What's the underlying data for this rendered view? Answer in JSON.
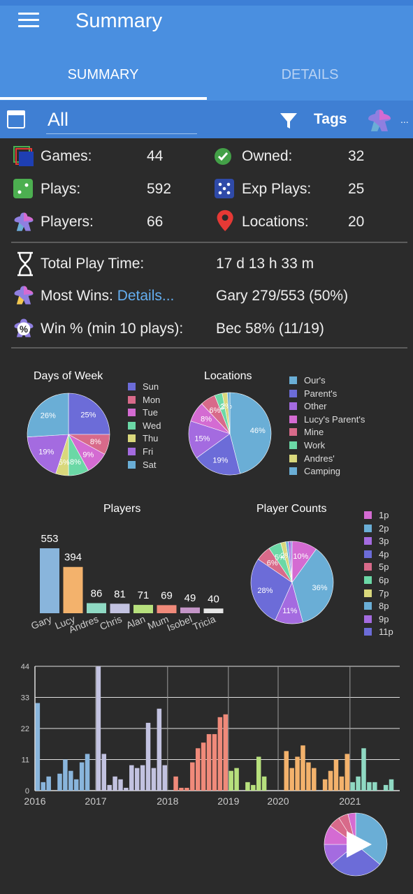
{
  "header": {
    "title": "Summary"
  },
  "tabs": [
    {
      "label": "SUMMARY"
    },
    {
      "label": "DETAILS"
    }
  ],
  "filter": {
    "date_value": "All",
    "tags_label": "Tags",
    "more": "..."
  },
  "stats": {
    "games_label": "Games:",
    "games_value": "44",
    "owned_label": "Owned:",
    "owned_value": "32",
    "plays_label": "Plays:",
    "plays_value": "592",
    "exp_plays_label": "Exp Plays:",
    "exp_plays_value": "25",
    "players_label": "Players:",
    "players_value": "66",
    "locations_label": "Locations:",
    "locations_value": "20",
    "play_time_label": "Total Play Time:",
    "play_time_value": "17 d 13 h 33 m",
    "most_wins_label": "Most Wins:",
    "most_wins_link": "Details...",
    "most_wins_value": "Gary 279/553 (50%)",
    "win_pct_label": "Win % (min 10 plays):",
    "win_pct_value": "Bec 58% (11/19)"
  },
  "colors": {
    "appbar": "#4a8fe0",
    "filterbar": "#3f7fd3",
    "link": "#64aef0",
    "background": "#2b2b2b"
  },
  "icons": [
    "menu-icon",
    "calendar-icon",
    "filter-icon",
    "meeple-icon",
    "games-icon",
    "check-icon",
    "dice-icon",
    "dice-blue-icon",
    "location-pin-icon",
    "hourglass-icon",
    "percent-icon",
    "play-icon"
  ],
  "chart_data": [
    {
      "type": "pie",
      "title": "Days of Week",
      "labels": [
        "Sun",
        "Mon",
        "Tue",
        "Wed",
        "Thu",
        "Fri",
        "Sat"
      ],
      "values": [
        25,
        8,
        9,
        8,
        5,
        19,
        26
      ],
      "slice_labels": [
        "25%",
        "8%",
        "9%",
        "8%",
        "5%",
        "19%",
        "26%"
      ],
      "colors": [
        "#6c6cd8",
        "#d86a8a",
        "#d46bd2",
        "#6bd8a6",
        "#d9d87c",
        "#a46be0",
        "#6aaed6"
      ]
    },
    {
      "type": "pie",
      "title": "Locations",
      "labels": [
        "Our's",
        "Parent's",
        "Other",
        "Lucy's Parent's",
        "Mine",
        "Work",
        "Andres'",
        "Camping"
      ],
      "values": [
        46,
        19,
        15,
        8,
        6,
        3,
        2,
        1
      ],
      "slice_labels": [
        "46%",
        "19%",
        "15%",
        "8%",
        "6%",
        "3",
        "2%",
        ""
      ],
      "colors": [
        "#6aaed6",
        "#6c6cd8",
        "#a46be0",
        "#d46bd2",
        "#d86a8a",
        "#6bd8a6",
        "#d9d87c",
        "#6aaed6"
      ]
    },
    {
      "type": "bar",
      "title": "Players",
      "categories": [
        "Gary",
        "Lucy",
        "Andres",
        "Chris",
        "Alan",
        "Mum",
        "Isobel",
        "Tricia"
      ],
      "values": [
        553,
        394,
        86,
        81,
        71,
        69,
        49,
        40
      ],
      "colors": [
        "#89b5dc",
        "#f3b26c",
        "#8fd9c3",
        "#c2c2e0",
        "#b7e07d",
        "#f08a7a",
        "#c495c7",
        "#e6e6e6"
      ]
    },
    {
      "type": "pie",
      "title": "Player Counts",
      "labels": [
        "1p",
        "2p",
        "3p",
        "4p",
        "5p",
        "6p",
        "7p",
        "8p",
        "9p",
        "11p"
      ],
      "values": [
        10,
        36,
        11,
        28,
        6,
        5,
        2,
        1,
        1,
        0.5
      ],
      "slice_labels": [
        "10%",
        "36%",
        "11%",
        "28%",
        "6%",
        "5%",
        "2%",
        "",
        "",
        ""
      ],
      "colors": [
        "#d46bd2",
        "#6aaed6",
        "#a46be0",
        "#6c6cd8",
        "#d86a8a",
        "#6bd8a6",
        "#d9d87c",
        "#6aaed6",
        "#a46be0",
        "#6c6cd8"
      ]
    },
    {
      "type": "bar",
      "title": "",
      "x_ticks": [
        "2016",
        "2017",
        "2018",
        "2019",
        "2020",
        "2021"
      ],
      "y_ticks": [
        "0",
        "11",
        "22",
        "33",
        "44"
      ],
      "ylim": [
        0,
        44
      ],
      "grid": true,
      "values": [
        31,
        3,
        5,
        0,
        6,
        11,
        7,
        4,
        10,
        13,
        0,
        44,
        13,
        2,
        5,
        4,
        1,
        9,
        8,
        9,
        24,
        8,
        29,
        9,
        0,
        5,
        1,
        1,
        10,
        15,
        17,
        20,
        20,
        26,
        27,
        7,
        8,
        0,
        3,
        2,
        12,
        5,
        0,
        0,
        0,
        14,
        8,
        12,
        16,
        10,
        8,
        0,
        4,
        7,
        11,
        5,
        13,
        3,
        5,
        15,
        3,
        3,
        0,
        2,
        4
      ],
      "colors_by_year": {
        "2016": "#89b5dc",
        "2017": "#c2c2e0",
        "2018": "#f08a7a",
        "2019": "#b7e07d",
        "2020": "#f3b26c",
        "2021": "#8fd9c3"
      },
      "year_of_bar": [
        "2016",
        "2016",
        "2016",
        "2016",
        "2016",
        "2016",
        "2016",
        "2016",
        "2016",
        "2016",
        "2016",
        "2017",
        "2017",
        "2017",
        "2017",
        "2017",
        "2017",
        "2017",
        "2017",
        "2017",
        "2017",
        "2017",
        "2017",
        "2017",
        "2018",
        "2018",
        "2018",
        "2018",
        "2018",
        "2018",
        "2018",
        "2018",
        "2018",
        "2018",
        "2018",
        "2019",
        "2019",
        "2019",
        "2019",
        "2019",
        "2019",
        "2019",
        "2019",
        "2019",
        "2020",
        "2020",
        "2020",
        "2020",
        "2020",
        "2020",
        "2020",
        "2020",
        "2020",
        "2020",
        "2020",
        "2020",
        "2020",
        "2021",
        "2021",
        "2021",
        "2021",
        "2021",
        "2021",
        "2021",
        "2021"
      ]
    }
  ]
}
